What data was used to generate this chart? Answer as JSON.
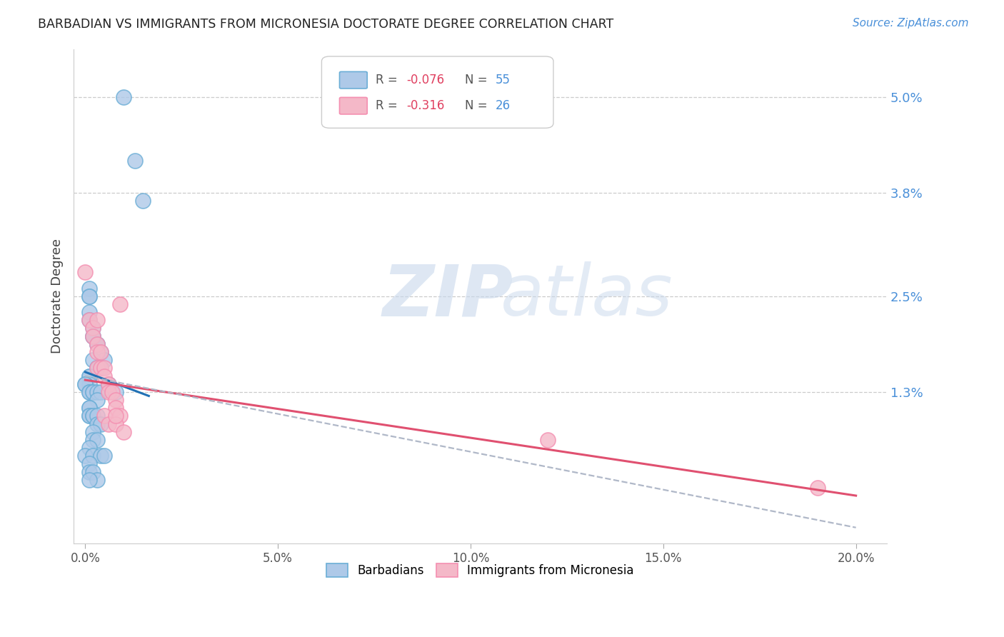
{
  "title": "BARBADIAN VS IMMIGRANTS FROM MICRONESIA DOCTORATE DEGREE CORRELATION CHART",
  "source": "Source: ZipAtlas.com",
  "ylabel": "Doctorate Degree",
  "xlabel_ticks": [
    "0.0%",
    "5.0%",
    "10.0%",
    "15.0%",
    "20.0%"
  ],
  "xlabel_vals": [
    0.0,
    0.05,
    0.1,
    0.15,
    0.2
  ],
  "ylabel_ticks": [
    "1.3%",
    "2.5%",
    "3.8%",
    "5.0%"
  ],
  "ylabel_vals": [
    0.013,
    0.025,
    0.038,
    0.05
  ],
  "xlim": [
    -0.003,
    0.208
  ],
  "ylim": [
    -0.006,
    0.056
  ],
  "legend_blue_R": "-0.076",
  "legend_blue_N": "55",
  "legend_pink_R": "-0.316",
  "legend_pink_N": "26",
  "legend_label_blue": "Barbadians",
  "legend_label_pink": "Immigrants from Micronesia",
  "blue_face": "#aec9e8",
  "blue_edge": "#6baed6",
  "pink_face": "#f4b8c8",
  "pink_edge": "#f48fb1",
  "line_blue": "#2171b5",
  "line_pink": "#e05070",
  "line_dashed": "#b0b8c8",
  "blue_scatter_x": [
    0.01,
    0.013,
    0.015,
    0.001,
    0.001,
    0.001,
    0.001,
    0.001,
    0.002,
    0.002,
    0.002,
    0.003,
    0.003,
    0.004,
    0.005,
    0.002,
    0.003,
    0.003,
    0.004,
    0.001,
    0.001,
    0.001,
    0.0,
    0.0,
    0.001,
    0.001,
    0.002,
    0.002,
    0.003,
    0.004,
    0.006,
    0.008,
    0.003,
    0.001,
    0.001,
    0.001,
    0.001,
    0.002,
    0.002,
    0.003,
    0.003,
    0.004,
    0.002,
    0.002,
    0.003,
    0.001,
    0.0,
    0.002,
    0.004,
    0.005,
    0.001,
    0.001,
    0.002,
    0.003,
    0.001
  ],
  "blue_scatter_y": [
    0.05,
    0.042,
    0.037,
    0.026,
    0.025,
    0.025,
    0.023,
    0.022,
    0.021,
    0.02,
    0.02,
    0.019,
    0.019,
    0.018,
    0.017,
    0.017,
    0.016,
    0.016,
    0.016,
    0.015,
    0.015,
    0.014,
    0.014,
    0.014,
    0.013,
    0.013,
    0.013,
    0.013,
    0.013,
    0.013,
    0.014,
    0.013,
    0.012,
    0.011,
    0.011,
    0.01,
    0.01,
    0.01,
    0.01,
    0.01,
    0.009,
    0.009,
    0.008,
    0.007,
    0.007,
    0.006,
    0.005,
    0.005,
    0.005,
    0.005,
    0.004,
    0.003,
    0.003,
    0.002,
    0.002
  ],
  "pink_scatter_x": [
    0.0,
    0.001,
    0.002,
    0.002,
    0.003,
    0.003,
    0.003,
    0.004,
    0.004,
    0.005,
    0.005,
    0.006,
    0.006,
    0.007,
    0.008,
    0.008,
    0.009,
    0.005,
    0.006,
    0.008,
    0.009,
    0.01,
    0.008,
    0.12,
    0.19,
    0.003
  ],
  "pink_scatter_y": [
    0.028,
    0.022,
    0.021,
    0.02,
    0.019,
    0.018,
    0.016,
    0.018,
    0.016,
    0.016,
    0.015,
    0.014,
    0.013,
    0.013,
    0.012,
    0.011,
    0.01,
    0.01,
    0.009,
    0.009,
    0.024,
    0.008,
    0.01,
    0.007,
    0.001,
    0.022
  ],
  "blue_line_x0": 0.0,
  "blue_line_x1": 0.0165,
  "blue_line_y0": 0.0155,
  "blue_line_y1": 0.0125,
  "pink_line_x0": 0.0,
  "pink_line_x1": 0.2,
  "pink_line_y0": 0.0145,
  "pink_line_y1": 0.0,
  "dashed_line_x0": 0.0,
  "dashed_line_x1": 0.2,
  "dashed_line_y0": 0.015,
  "dashed_line_y1": -0.004
}
